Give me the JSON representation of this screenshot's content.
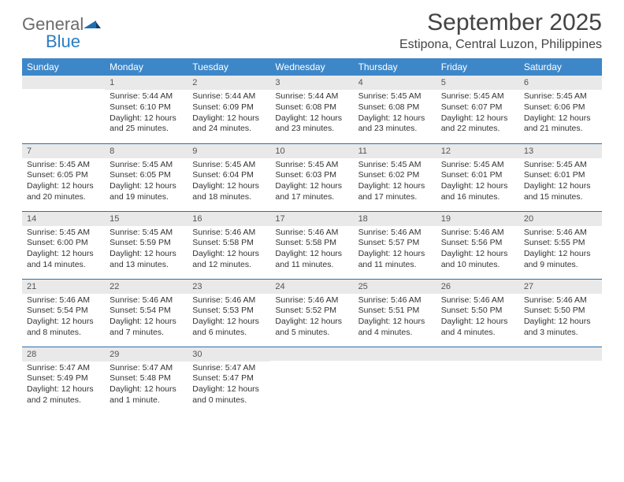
{
  "brand": {
    "word1": "General",
    "word2": "Blue"
  },
  "title": "September 2025",
  "location": "Estipona, Central Luzon, Philippines",
  "colors": {
    "header_bg": "#3d87c9",
    "header_text": "#ffffff",
    "daynum_bg": "#e9e9e9",
    "row_divider": "#2d6fa8",
    "brand_gray": "#6b6b6b",
    "brand_blue": "#2d7dc1",
    "text": "#333333",
    "page_bg": "#ffffff"
  },
  "typography": {
    "title_fontsize": 30,
    "location_fontsize": 16,
    "header_fontsize": 12,
    "cell_fontsize": 10.5
  },
  "days_of_week": [
    "Sunday",
    "Monday",
    "Tuesday",
    "Wednesday",
    "Thursday",
    "Friday",
    "Saturday"
  ],
  "weeks": [
    [
      null,
      {
        "n": "1",
        "sr": "5:44 AM",
        "ss": "6:10 PM",
        "dl": "12 hours and 25 minutes."
      },
      {
        "n": "2",
        "sr": "5:44 AM",
        "ss": "6:09 PM",
        "dl": "12 hours and 24 minutes."
      },
      {
        "n": "3",
        "sr": "5:44 AM",
        "ss": "6:08 PM",
        "dl": "12 hours and 23 minutes."
      },
      {
        "n": "4",
        "sr": "5:45 AM",
        "ss": "6:08 PM",
        "dl": "12 hours and 23 minutes."
      },
      {
        "n": "5",
        "sr": "5:45 AM",
        "ss": "6:07 PM",
        "dl": "12 hours and 22 minutes."
      },
      {
        "n": "6",
        "sr": "5:45 AM",
        "ss": "6:06 PM",
        "dl": "12 hours and 21 minutes."
      }
    ],
    [
      {
        "n": "7",
        "sr": "5:45 AM",
        "ss": "6:05 PM",
        "dl": "12 hours and 20 minutes."
      },
      {
        "n": "8",
        "sr": "5:45 AM",
        "ss": "6:05 PM",
        "dl": "12 hours and 19 minutes."
      },
      {
        "n": "9",
        "sr": "5:45 AM",
        "ss": "6:04 PM",
        "dl": "12 hours and 18 minutes."
      },
      {
        "n": "10",
        "sr": "5:45 AM",
        "ss": "6:03 PM",
        "dl": "12 hours and 17 minutes."
      },
      {
        "n": "11",
        "sr": "5:45 AM",
        "ss": "6:02 PM",
        "dl": "12 hours and 17 minutes."
      },
      {
        "n": "12",
        "sr": "5:45 AM",
        "ss": "6:01 PM",
        "dl": "12 hours and 16 minutes."
      },
      {
        "n": "13",
        "sr": "5:45 AM",
        "ss": "6:01 PM",
        "dl": "12 hours and 15 minutes."
      }
    ],
    [
      {
        "n": "14",
        "sr": "5:45 AM",
        "ss": "6:00 PM",
        "dl": "12 hours and 14 minutes."
      },
      {
        "n": "15",
        "sr": "5:45 AM",
        "ss": "5:59 PM",
        "dl": "12 hours and 13 minutes."
      },
      {
        "n": "16",
        "sr": "5:46 AM",
        "ss": "5:58 PM",
        "dl": "12 hours and 12 minutes."
      },
      {
        "n": "17",
        "sr": "5:46 AM",
        "ss": "5:58 PM",
        "dl": "12 hours and 11 minutes."
      },
      {
        "n": "18",
        "sr": "5:46 AM",
        "ss": "5:57 PM",
        "dl": "12 hours and 11 minutes."
      },
      {
        "n": "19",
        "sr": "5:46 AM",
        "ss": "5:56 PM",
        "dl": "12 hours and 10 minutes."
      },
      {
        "n": "20",
        "sr": "5:46 AM",
        "ss": "5:55 PM",
        "dl": "12 hours and 9 minutes."
      }
    ],
    [
      {
        "n": "21",
        "sr": "5:46 AM",
        "ss": "5:54 PM",
        "dl": "12 hours and 8 minutes."
      },
      {
        "n": "22",
        "sr": "5:46 AM",
        "ss": "5:54 PM",
        "dl": "12 hours and 7 minutes."
      },
      {
        "n": "23",
        "sr": "5:46 AM",
        "ss": "5:53 PM",
        "dl": "12 hours and 6 minutes."
      },
      {
        "n": "24",
        "sr": "5:46 AM",
        "ss": "5:52 PM",
        "dl": "12 hours and 5 minutes."
      },
      {
        "n": "25",
        "sr": "5:46 AM",
        "ss": "5:51 PM",
        "dl": "12 hours and 4 minutes."
      },
      {
        "n": "26",
        "sr": "5:46 AM",
        "ss": "5:50 PM",
        "dl": "12 hours and 4 minutes."
      },
      {
        "n": "27",
        "sr": "5:46 AM",
        "ss": "5:50 PM",
        "dl": "12 hours and 3 minutes."
      }
    ],
    [
      {
        "n": "28",
        "sr": "5:47 AM",
        "ss": "5:49 PM",
        "dl": "12 hours and 2 minutes."
      },
      {
        "n": "29",
        "sr": "5:47 AM",
        "ss": "5:48 PM",
        "dl": "12 hours and 1 minute."
      },
      {
        "n": "30",
        "sr": "5:47 AM",
        "ss": "5:47 PM",
        "dl": "12 hours and 0 minutes."
      },
      null,
      null,
      null,
      null
    ]
  ],
  "labels": {
    "sunrise": "Sunrise:",
    "sunset": "Sunset:",
    "daylight": "Daylight:"
  }
}
